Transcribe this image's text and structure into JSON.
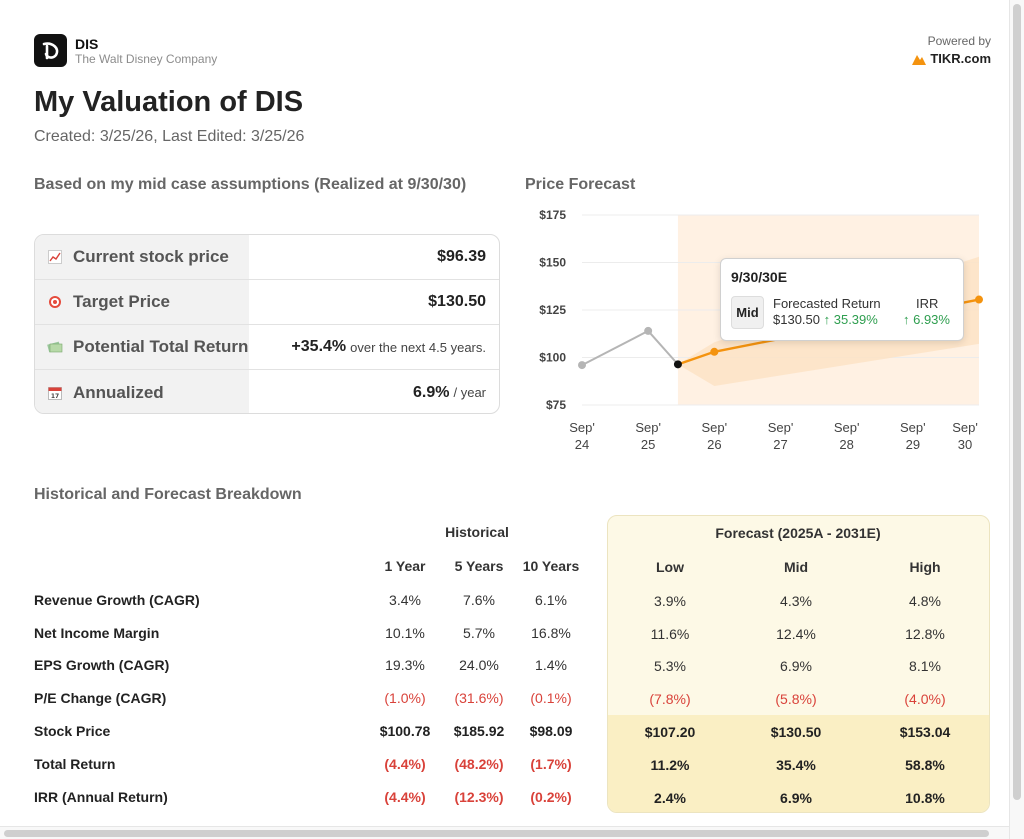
{
  "header": {
    "ticker": "DIS",
    "company": "The Walt Disney Company",
    "powered_by": "Powered by",
    "brand": "TIKR.com",
    "logo_icon": "disney-logo-icon",
    "brand_icon": "tikr-logo-icon"
  },
  "title": "My Valuation of DIS",
  "created": "Created: 3/25/26, Last Edited: 3/25/26",
  "summary": {
    "heading": "Based on my mid case assumptions (Realized at 9/30/30)",
    "rows": [
      {
        "icon": "chart-up-icon",
        "label": "Current stock price",
        "value": "$96.39",
        "suffix": ""
      },
      {
        "icon": "target-icon",
        "label": "Target Price",
        "value": "$130.50",
        "suffix": ""
      },
      {
        "icon": "money-icon",
        "label": "Potential Total Return",
        "value": "+35.4%",
        "suffix": "over the next 4.5 years."
      },
      {
        "icon": "calendar-icon",
        "label": "Annualized",
        "value": "6.9%",
        "suffix": "/ year"
      }
    ]
  },
  "chart_heading": "Price Forecast",
  "chart_data": {
    "type": "line",
    "title": "Price Forecast",
    "y_ticks": [
      "$175",
      "$150",
      "$125",
      "$100",
      "$75"
    ],
    "ylim": [
      75,
      175
    ],
    "x_ticks": [
      [
        "Sep'",
        "24"
      ],
      [
        "Sep'",
        "25"
      ],
      [
        "Sep'",
        "26"
      ],
      [
        "Sep'",
        "27"
      ],
      [
        "Sep'",
        "28"
      ],
      [
        "Sep'",
        "29"
      ],
      [
        "Sep'",
        "30"
      ]
    ],
    "historical": [
      {
        "x": 2024.75,
        "y": 96
      },
      {
        "x": 2025.75,
        "y": 114
      },
      {
        "x": 2026.2,
        "y": 96.39
      }
    ],
    "forecast": [
      {
        "x": 2026.2,
        "y": 96.39
      },
      {
        "x": 2026.75,
        "y": 103
      },
      {
        "x": 2030.75,
        "y": 130.5
      }
    ],
    "band_low": [
      {
        "x": 2026.2,
        "y": 96.39
      },
      {
        "x": 2026.75,
        "y": 85
      },
      {
        "x": 2030.75,
        "y": 107.2
      }
    ],
    "band_high": [
      {
        "x": 2026.2,
        "y": 96.39
      },
      {
        "x": 2026.75,
        "y": 108
      },
      {
        "x": 2030.75,
        "y": 153.04
      }
    ],
    "colors": {
      "historical": "#b5b5b5",
      "forecast": "#f4930f",
      "band": "#fde3c6",
      "shade": "#fff1e3",
      "current": "#111111"
    }
  },
  "tooltip": {
    "date": "9/30/30E",
    "scenario": "Mid",
    "return_label": "Forecasted Return",
    "return_price": "$130.50",
    "return_pct": "↑ 35.39%",
    "irr_label": "IRR",
    "irr_value": "↑ 6.93%"
  },
  "breakdown": {
    "heading": "Historical and Forecast Breakdown",
    "historical_title": "Historical",
    "forecast_title": "Forecast (2025A - 2031E)",
    "historical_cols": [
      "1 Year",
      "5 Years",
      "10 Years"
    ],
    "forecast_cols": [
      "Low",
      "Mid",
      "High"
    ],
    "rows": [
      {
        "label": "Revenue Growth (CAGR)",
        "hist": [
          "3.4%",
          "7.6%",
          "6.1%"
        ],
        "fc": [
          "3.9%",
          "4.3%",
          "4.8%"
        ]
      },
      {
        "label": "Net Income Margin",
        "hist": [
          "10.1%",
          "5.7%",
          "16.8%"
        ],
        "fc": [
          "11.6%",
          "12.4%",
          "12.8%"
        ]
      },
      {
        "label": "EPS Growth (CAGR)",
        "hist": [
          "19.3%",
          "24.0%",
          "1.4%"
        ],
        "fc": [
          "5.3%",
          "6.9%",
          "8.1%"
        ]
      },
      {
        "label": "P/E Change (CAGR)",
        "hist": [
          "(1.0%)",
          "(31.6%)",
          "(0.1%)"
        ],
        "fc": [
          "(7.8%)",
          "(5.8%)",
          "(4.0%)"
        ]
      },
      {
        "label": "Stock Price",
        "hist": [
          "$100.78",
          "$185.92",
          "$98.09"
        ],
        "fc": [
          "$107.20",
          "$130.50",
          "$153.04"
        ]
      },
      {
        "label": "Total Return",
        "hist": [
          "(4.4%)",
          "(48.2%)",
          "(1.7%)"
        ],
        "fc": [
          "11.2%",
          "35.4%",
          "58.8%"
        ]
      },
      {
        "label": "IRR (Annual Return)",
        "hist": [
          "(4.4%)",
          "(12.3%)",
          "(0.2%)"
        ],
        "fc": [
          "2.4%",
          "6.9%",
          "10.8%"
        ]
      }
    ]
  }
}
